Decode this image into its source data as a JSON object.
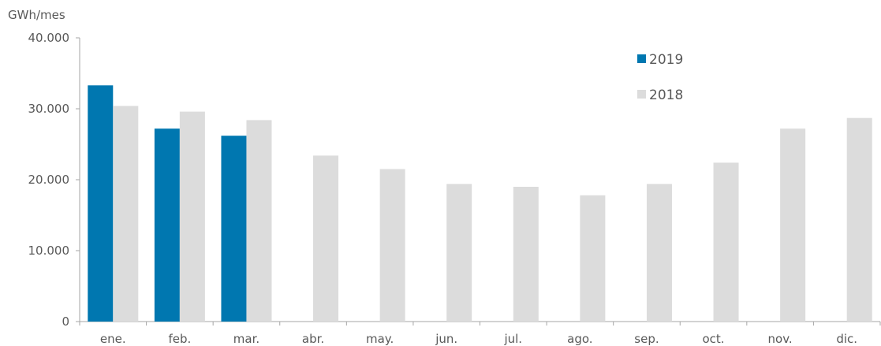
{
  "chart_data": {
    "type": "bar",
    "ylabel": "GWh/mes",
    "categories": [
      "ene.",
      "feb.",
      "mar.",
      "abr.",
      "may.",
      "jun.",
      "jul.",
      "ago.",
      "sep.",
      "oct.",
      "nov.",
      "dic."
    ],
    "series": [
      {
        "name": "2019",
        "color": "#0077B0",
        "values": [
          33300,
          27200,
          26200,
          null,
          null,
          null,
          null,
          null,
          null,
          null,
          null,
          null
        ]
      },
      {
        "name": "2018",
        "color": "#DCDCDC",
        "values": [
          30400,
          29600,
          28400,
          23400,
          21500,
          19400,
          19000,
          17800,
          19400,
          22400,
          27200,
          28700
        ]
      }
    ],
    "ylim": [
      0,
      40000
    ],
    "yticks": [
      0,
      10000,
      20000,
      30000,
      40000
    ],
    "ytick_labels": [
      "0",
      "10.000",
      "20.000",
      "30.000",
      "40.000"
    ],
    "grid": false,
    "legend_position": "top-right"
  }
}
